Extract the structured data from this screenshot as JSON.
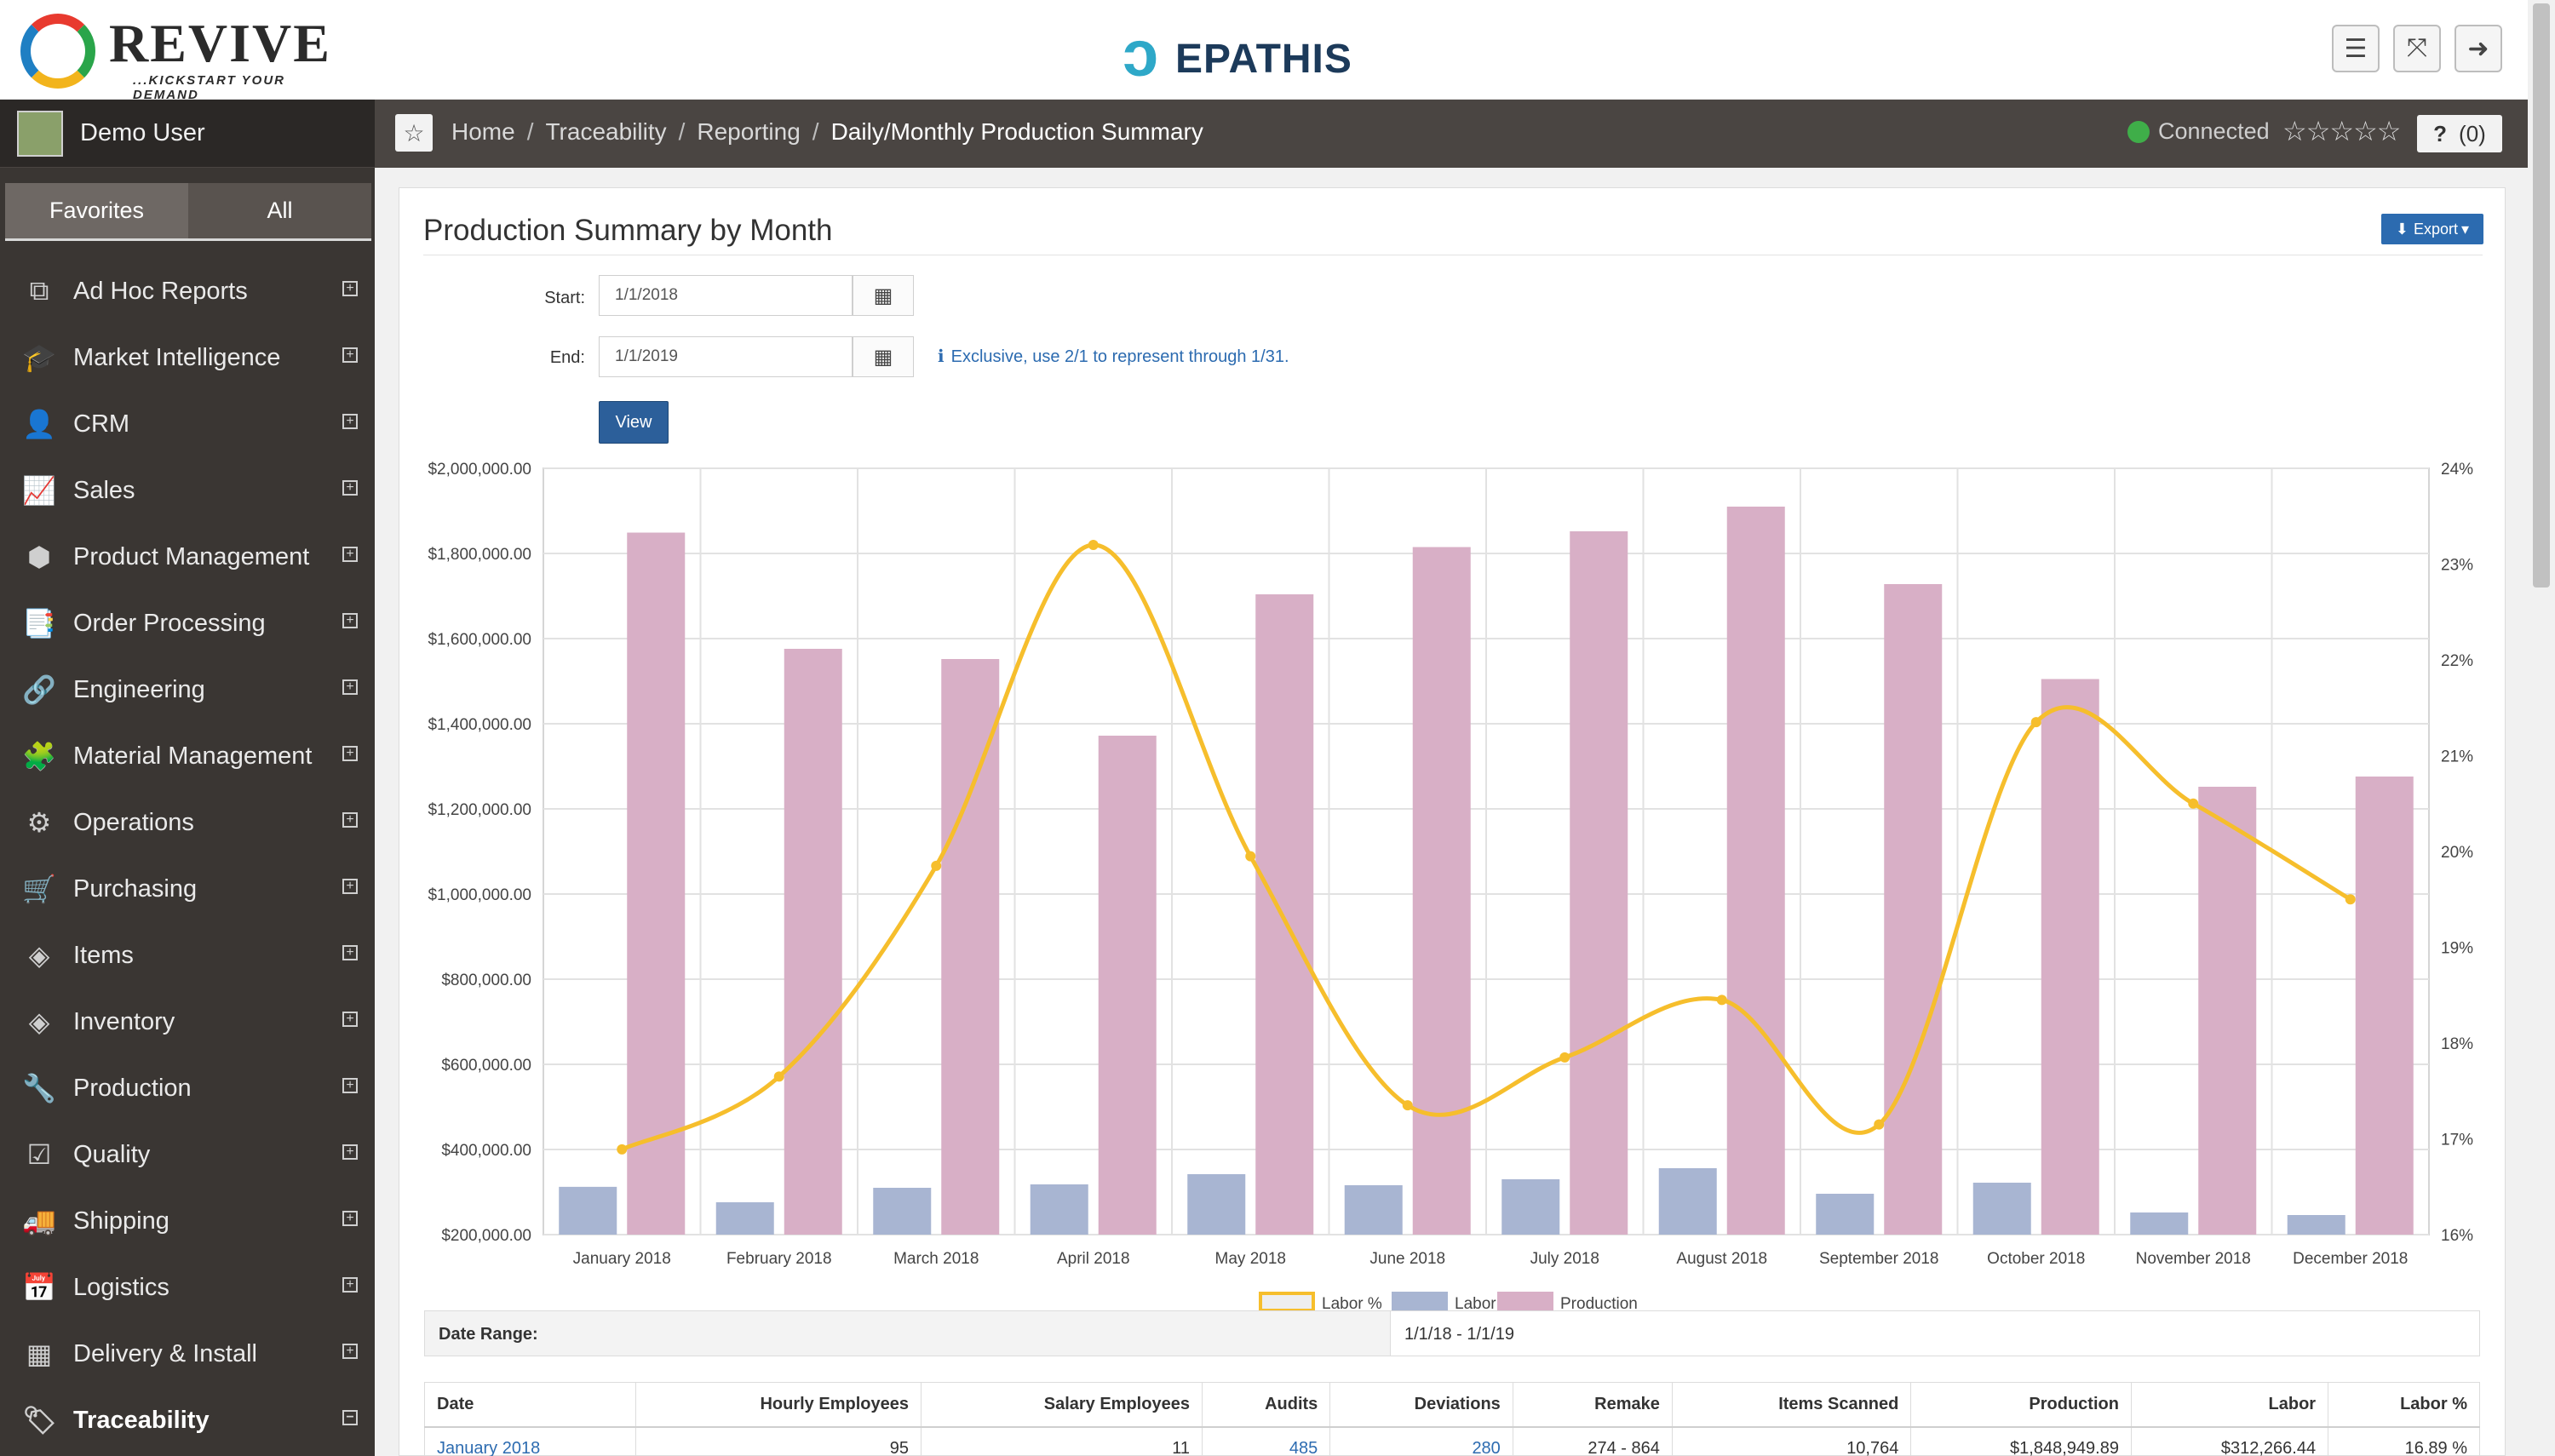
{
  "brand": {
    "left_name": "REVIVE",
    "left_tagline": "...KICKSTART YOUR DEMAND",
    "center_name": "EPATHIS"
  },
  "user": {
    "name": "Demo User"
  },
  "sidebar_tabs": [
    "Favorites",
    "All"
  ],
  "sidebar": {
    "items": [
      {
        "label": "Ad Hoc Reports",
        "icon": "reports-icon",
        "glyph": "⧉"
      },
      {
        "label": "Market Intelligence",
        "icon": "graduation-cap-icon",
        "glyph": "🎓"
      },
      {
        "label": "CRM",
        "icon": "user-icon",
        "glyph": "👤"
      },
      {
        "label": "Sales",
        "icon": "line-chart-icon",
        "glyph": "📈"
      },
      {
        "label": "Product Management",
        "icon": "cube-icon",
        "glyph": "⬢"
      },
      {
        "label": "Order Processing",
        "icon": "documents-icon",
        "glyph": "📑"
      },
      {
        "label": "Engineering",
        "icon": "wrench-link-icon",
        "glyph": "🔗"
      },
      {
        "label": "Material Management",
        "icon": "puzzle-icon",
        "glyph": "🧩"
      },
      {
        "label": "Operations",
        "icon": "gears-icon",
        "glyph": "⚙"
      },
      {
        "label": "Purchasing",
        "icon": "cart-icon",
        "glyph": "🛒"
      },
      {
        "label": "Items",
        "icon": "cubes-icon",
        "glyph": "◈"
      },
      {
        "label": "Inventory",
        "icon": "boxes-icon",
        "glyph": "◈"
      },
      {
        "label": "Production",
        "icon": "wrench-icon",
        "glyph": "🔧"
      },
      {
        "label": "Quality",
        "icon": "checkbox-icon",
        "glyph": "☑"
      },
      {
        "label": "Shipping",
        "icon": "truck-icon",
        "glyph": "🚚"
      },
      {
        "label": "Logistics",
        "icon": "calendar-check-icon",
        "glyph": "📅"
      },
      {
        "label": "Delivery & Install",
        "icon": "building-icon",
        "glyph": "▦"
      },
      {
        "label": "Traceability",
        "icon": "tags-icon",
        "glyph": "🏷",
        "active": true
      }
    ]
  },
  "breadcrumb": [
    "Home",
    "Traceability",
    "Reporting",
    "Daily/Monthly Production Summary"
  ],
  "status": {
    "label": "Connected",
    "stars": "☆☆☆☆☆",
    "help": "?",
    "help_count": "(0)"
  },
  "panel": {
    "title": "Production Summary by Month",
    "export_label": "Export",
    "start_label": "Start:",
    "start_value": "1/1/2018",
    "end_label": "End:",
    "end_value": "1/1/2019",
    "hint": "Exclusive, use 2/1 to represent through 1/31.",
    "view_label": "View"
  },
  "chart_data": {
    "type": "bar",
    "categories": [
      "January 2018",
      "February 2018",
      "March 2018",
      "April 2018",
      "May 2018",
      "June 2018",
      "July 2018",
      "August 2018",
      "September 2018",
      "October 2018",
      "November 2018",
      "December 2018"
    ],
    "series": [
      {
        "name": "Labor",
        "kind": "bar",
        "axis": "left",
        "color": "#a8b5d2",
        "values": [
          312266,
          276000,
          310000,
          318000,
          342000,
          316000,
          330000,
          356000,
          296000,
          322000,
          252000,
          246000
        ]
      },
      {
        "name": "Production",
        "kind": "bar",
        "axis": "left",
        "color": "#d8afc6",
        "values": [
          1848950,
          1576000,
          1552000,
          1372000,
          1704000,
          1815000,
          1852000,
          1910000,
          1728000,
          1505000,
          1252000,
          1276000
        ]
      },
      {
        "name": "Labor %",
        "kind": "line",
        "axis": "right",
        "color": "#f6be2c",
        "values": [
          16.89,
          17.65,
          19.85,
          23.2,
          19.95,
          17.35,
          17.85,
          18.45,
          17.15,
          21.35,
          20.5,
          19.5
        ]
      }
    ],
    "y_left_ticks": [
      "$200,000.00",
      "$400,000.00",
      "$600,000.00",
      "$800,000.00",
      "$1,000,000.00",
      "$1,200,000.00",
      "$1,400,000.00",
      "$1,600,000.00",
      "$1,800,000.00",
      "$2,000,000.00"
    ],
    "y_left_range": [
      200000,
      2000000
    ],
    "y_right_ticks": [
      "16%",
      "17%",
      "18%",
      "19%",
      "20%",
      "21%",
      "22%",
      "23%",
      "24%"
    ],
    "y_right_range": [
      16,
      24
    ],
    "grid": true,
    "legend_position": "bottom"
  },
  "date_range": {
    "label": "Date Range:",
    "value": "1/1/18 - 1/1/19"
  },
  "table": {
    "headers": [
      "Date",
      "Hourly Employees",
      "Salary Employees",
      "Audits",
      "Deviations",
      "Remake",
      "Items Scanned",
      "Production",
      "Labor",
      "Labor %"
    ],
    "rows": [
      [
        "January 2018",
        "95",
        "11",
        "485",
        "280",
        "274 - 864",
        "10,764",
        "$1,848,949.89",
        "$312,266.44",
        "16.89 %"
      ]
    ]
  }
}
